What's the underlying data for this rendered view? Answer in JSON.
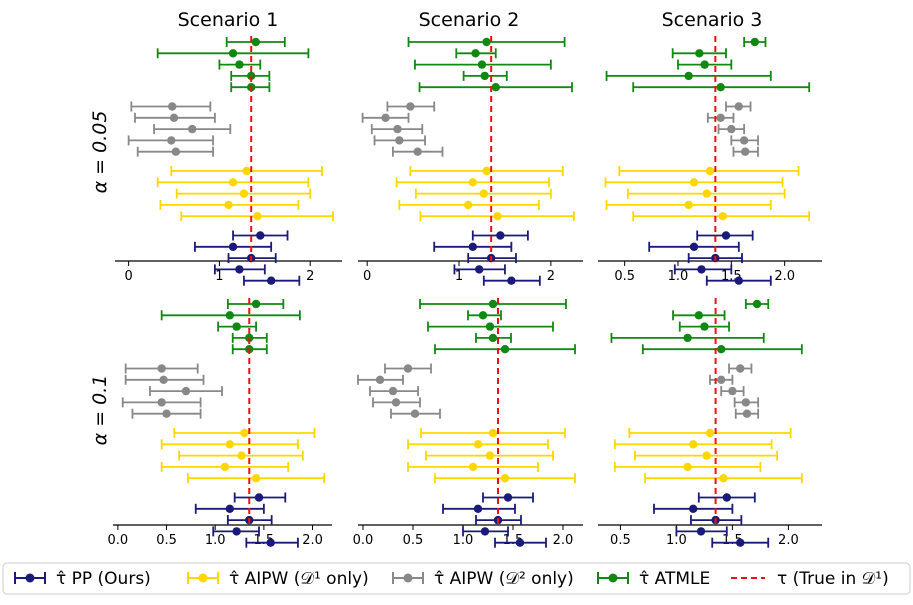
{
  "figure": {
    "column_titles": [
      "Scenario 1",
      "Scenario 2",
      "Scenario 3"
    ],
    "row_labels": [
      "α = 0.05",
      "α = 0.1"
    ],
    "legend": [
      {
        "key": "pp",
        "label": "τ̂ PP (Ours)"
      },
      {
        "key": "aipw1",
        "label": "τ̂ AIPW (𝒟¹ only)"
      },
      {
        "key": "aipw2",
        "label": "τ̂ AIPW (𝒟² only)"
      },
      {
        "key": "atmle",
        "label": "τ̂ ATMLE"
      },
      {
        "key": "truth",
        "label": "τ (True in 𝒟¹)"
      }
    ]
  },
  "colors": {
    "pp": "#1a1a7a",
    "aipw1": "#ffd700",
    "aipw2": "#888888",
    "atmle": "#118811",
    "truth": "#ee1111"
  },
  "chart_data": [
    {
      "type": "scatter",
      "title": "Scenario 1",
      "ylabel": "α = 0.05",
      "xlim": [
        -0.15,
        2.35
      ],
      "xticks": [
        0,
        1,
        2
      ],
      "tick_labels": [
        "0",
        "1",
        "2"
      ],
      "true_tau": 1.35,
      "series": [
        {
          "name": "atmle",
          "points": [
            {
              "est": 1.4,
              "lo": 1.08,
              "hi": 1.72
            },
            {
              "est": 1.15,
              "lo": 0.32,
              "hi": 1.98
            },
            {
              "est": 1.22,
              "lo": 1.0,
              "hi": 1.45
            },
            {
              "est": 1.35,
              "lo": 1.13,
              "hi": 1.55
            },
            {
              "est": 1.35,
              "lo": 1.13,
              "hi": 1.55
            }
          ]
        },
        {
          "name": "aipw2",
          "points": [
            {
              "est": 0.48,
              "lo": 0.03,
              "hi": 0.9
            },
            {
              "est": 0.5,
              "lo": 0.07,
              "hi": 0.95
            },
            {
              "est": 0.7,
              "lo": 0.28,
              "hi": 1.12
            },
            {
              "est": 0.47,
              "lo": 0.0,
              "hi": 0.93
            },
            {
              "est": 0.52,
              "lo": 0.1,
              "hi": 0.93
            }
          ]
        },
        {
          "name": "aipw1",
          "points": [
            {
              "est": 1.3,
              "lo": 0.47,
              "hi": 2.13
            },
            {
              "est": 1.15,
              "lo": 0.32,
              "hi": 1.98
            },
            {
              "est": 1.27,
              "lo": 0.53,
              "hi": 2.0
            },
            {
              "est": 1.1,
              "lo": 0.35,
              "hi": 1.87
            },
            {
              "est": 1.42,
              "lo": 0.58,
              "hi": 2.25
            }
          ]
        },
        {
          "name": "pp",
          "points": [
            {
              "est": 1.45,
              "lo": 1.15,
              "hi": 1.75
            },
            {
              "est": 1.15,
              "lo": 0.73,
              "hi": 1.57
            },
            {
              "est": 1.35,
              "lo": 1.1,
              "hi": 1.62
            },
            {
              "est": 1.22,
              "lo": 0.95,
              "hi": 1.5
            },
            {
              "est": 1.57,
              "lo": 1.27,
              "hi": 1.88
            }
          ]
        }
      ]
    },
    {
      "type": "scatter",
      "title": "Scenario 2",
      "xlim": [
        -0.1,
        2.35
      ],
      "xticks": [
        0,
        1,
        2
      ],
      "tick_labels": [
        "0",
        "1",
        "2"
      ],
      "true_tau": 1.35,
      "series": [
        {
          "name": "atmle",
          "points": [
            {
              "est": 1.3,
              "lo": 0.45,
              "hi": 2.15
            },
            {
              "est": 1.18,
              "lo": 0.97,
              "hi": 1.4
            },
            {
              "est": 1.25,
              "lo": 0.52,
              "hi": 2.0
            },
            {
              "est": 1.28,
              "lo": 1.05,
              "hi": 1.52
            },
            {
              "est": 1.4,
              "lo": 0.57,
              "hi": 2.23
            }
          ]
        },
        {
          "name": "aipw2",
          "points": [
            {
              "est": 0.47,
              "lo": 0.22,
              "hi": 0.73
            },
            {
              "est": 0.2,
              "lo": -0.05,
              "hi": 0.45
            },
            {
              "est": 0.33,
              "lo": 0.05,
              "hi": 0.6
            },
            {
              "est": 0.35,
              "lo": 0.08,
              "hi": 0.63
            },
            {
              "est": 0.55,
              "lo": 0.28,
              "hi": 0.82
            }
          ]
        },
        {
          "name": "aipw1",
          "points": [
            {
              "est": 1.3,
              "lo": 0.47,
              "hi": 2.13
            },
            {
              "est": 1.15,
              "lo": 0.32,
              "hi": 1.98
            },
            {
              "est": 1.27,
              "lo": 0.53,
              "hi": 2.0
            },
            {
              "est": 1.1,
              "lo": 0.35,
              "hi": 1.87
            },
            {
              "est": 1.42,
              "lo": 0.58,
              "hi": 2.25
            }
          ]
        },
        {
          "name": "pp",
          "points": [
            {
              "est": 1.45,
              "lo": 1.15,
              "hi": 1.75
            },
            {
              "est": 1.15,
              "lo": 0.73,
              "hi": 1.57
            },
            {
              "est": 1.35,
              "lo": 1.1,
              "hi": 1.62
            },
            {
              "est": 1.22,
              "lo": 0.95,
              "hi": 1.5
            },
            {
              "est": 1.57,
              "lo": 1.27,
              "hi": 1.88
            }
          ]
        }
      ]
    },
    {
      "type": "scatter",
      "title": "Scenario 3",
      "xlim": [
        0.25,
        2.35
      ],
      "xticks": [
        0.5,
        1.0,
        1.5,
        2.0
      ],
      "tick_labels": [
        "0.5",
        "1.0",
        "1.5",
        "2.0"
      ],
      "true_tau": 1.35,
      "series": [
        {
          "name": "atmle",
          "points": [
            {
              "est": 1.72,
              "lo": 1.62,
              "hi": 1.82
            },
            {
              "est": 1.2,
              "lo": 0.95,
              "hi": 1.45
            },
            {
              "est": 1.25,
              "lo": 1.0,
              "hi": 1.5
            },
            {
              "est": 1.1,
              "lo": 0.33,
              "hi": 1.87
            },
            {
              "est": 1.4,
              "lo": 0.58,
              "hi": 2.23
            }
          ]
        },
        {
          "name": "aipw2",
          "points": [
            {
              "est": 1.57,
              "lo": 1.45,
              "hi": 1.68
            },
            {
              "est": 1.4,
              "lo": 1.28,
              "hi": 1.52
            },
            {
              "est": 1.5,
              "lo": 1.38,
              "hi": 1.62
            },
            {
              "est": 1.62,
              "lo": 1.5,
              "hi": 1.75
            },
            {
              "est": 1.63,
              "lo": 1.52,
              "hi": 1.75
            }
          ]
        },
        {
          "name": "aipw1",
          "points": [
            {
              "est": 1.3,
              "lo": 0.45,
              "hi": 2.13
            },
            {
              "est": 1.15,
              "lo": 0.32,
              "hi": 1.98
            },
            {
              "est": 1.27,
              "lo": 0.53,
              "hi": 2.0
            },
            {
              "est": 1.1,
              "lo": 0.33,
              "hi": 1.87
            },
            {
              "est": 1.42,
              "lo": 0.58,
              "hi": 2.23
            }
          ]
        },
        {
          "name": "pp",
          "points": [
            {
              "est": 1.45,
              "lo": 1.18,
              "hi": 1.7
            },
            {
              "est": 1.15,
              "lo": 0.73,
              "hi": 1.57
            },
            {
              "est": 1.35,
              "lo": 1.1,
              "hi": 1.6
            },
            {
              "est": 1.22,
              "lo": 0.97,
              "hi": 1.5
            },
            {
              "est": 1.57,
              "lo": 1.27,
              "hi": 1.87
            }
          ]
        }
      ]
    },
    {
      "type": "scatter",
      "ylabel": "α = 0.1",
      "xlim": [
        -0.05,
        2.2
      ],
      "xticks": [
        0.0,
        0.5,
        1.0,
        1.5,
        2.0
      ],
      "tick_labels": [
        "0.0",
        "0.5",
        "1.0",
        "1.5",
        "2.0"
      ],
      "true_tau": 1.35,
      "series": [
        {
          "name": "atmle",
          "points": [
            {
              "est": 1.42,
              "lo": 1.13,
              "hi": 1.7
            },
            {
              "est": 1.15,
              "lo": 0.45,
              "hi": 1.87
            },
            {
              "est": 1.22,
              "lo": 1.03,
              "hi": 1.42
            },
            {
              "est": 1.35,
              "lo": 1.18,
              "hi": 1.53
            },
            {
              "est": 1.35,
              "lo": 1.18,
              "hi": 1.53
            }
          ]
        },
        {
          "name": "aipw2",
          "points": [
            {
              "est": 0.45,
              "lo": 0.08,
              "hi": 0.82
            },
            {
              "est": 0.47,
              "lo": 0.08,
              "hi": 0.88
            },
            {
              "est": 0.7,
              "lo": 0.33,
              "hi": 1.07
            },
            {
              "est": 0.45,
              "lo": 0.05,
              "hi": 0.85
            },
            {
              "est": 0.5,
              "lo": 0.15,
              "hi": 0.85
            }
          ]
        },
        {
          "name": "aipw1",
          "points": [
            {
              "est": 1.3,
              "lo": 0.58,
              "hi": 2.02
            },
            {
              "est": 1.15,
              "lo": 0.45,
              "hi": 1.85
            },
            {
              "est": 1.27,
              "lo": 0.63,
              "hi": 1.9
            },
            {
              "est": 1.1,
              "lo": 0.45,
              "hi": 1.75
            },
            {
              "est": 1.42,
              "lo": 0.72,
              "hi": 2.12
            }
          ]
        },
        {
          "name": "pp",
          "points": [
            {
              "est": 1.45,
              "lo": 1.2,
              "hi": 1.72
            },
            {
              "est": 1.15,
              "lo": 0.8,
              "hi": 1.5
            },
            {
              "est": 1.35,
              "lo": 1.13,
              "hi": 1.58
            },
            {
              "est": 1.22,
              "lo": 0.98,
              "hi": 1.45
            },
            {
              "est": 1.57,
              "lo": 1.32,
              "hi": 1.85
            }
          ]
        }
      ]
    },
    {
      "type": "scatter",
      "xlim": [
        -0.05,
        2.2
      ],
      "xticks": [
        0.0,
        0.5,
        1.0,
        1.5,
        2.0
      ],
      "tick_labels": [
        "0.0",
        "0.5",
        "1.0",
        "1.5",
        "2.0"
      ],
      "true_tau": 1.35,
      "series": [
        {
          "name": "atmle",
          "points": [
            {
              "est": 1.3,
              "lo": 0.57,
              "hi": 2.03
            },
            {
              "est": 1.2,
              "lo": 1.05,
              "hi": 1.38
            },
            {
              "est": 1.27,
              "lo": 0.65,
              "hi": 1.9
            },
            {
              "est": 1.3,
              "lo": 1.13,
              "hi": 1.48
            },
            {
              "est": 1.42,
              "lo": 0.72,
              "hi": 2.12
            }
          ]
        },
        {
          "name": "aipw2",
          "points": [
            {
              "est": 0.45,
              "lo": 0.22,
              "hi": 0.68
            },
            {
              "est": 0.17,
              "lo": -0.05,
              "hi": 0.4
            },
            {
              "est": 0.3,
              "lo": 0.07,
              "hi": 0.55
            },
            {
              "est": 0.33,
              "lo": 0.1,
              "hi": 0.57
            },
            {
              "est": 0.52,
              "lo": 0.28,
              "hi": 0.77
            }
          ]
        },
        {
          "name": "aipw1",
          "points": [
            {
              "est": 1.3,
              "lo": 0.58,
              "hi": 2.02
            },
            {
              "est": 1.15,
              "lo": 0.45,
              "hi": 1.85
            },
            {
              "est": 1.27,
              "lo": 0.63,
              "hi": 1.9
            },
            {
              "est": 1.1,
              "lo": 0.45,
              "hi": 1.75
            },
            {
              "est": 1.42,
              "lo": 0.72,
              "hi": 2.12
            }
          ]
        },
        {
          "name": "pp",
          "points": [
            {
              "est": 1.45,
              "lo": 1.2,
              "hi": 1.7
            },
            {
              "est": 1.15,
              "lo": 0.8,
              "hi": 1.52
            },
            {
              "est": 1.35,
              "lo": 1.13,
              "hi": 1.58
            },
            {
              "est": 1.22,
              "lo": 1.0,
              "hi": 1.45
            },
            {
              "est": 1.57,
              "lo": 1.32,
              "hi": 1.83
            }
          ]
        }
      ]
    },
    {
      "type": "scatter",
      "xlim": [
        0.3,
        2.3
      ],
      "xticks": [
        0.5,
        1.0,
        1.5,
        2.0
      ],
      "tick_labels": [
        "0.5",
        "1.0",
        "1.5",
        "2.0"
      ],
      "true_tau": 1.35,
      "series": [
        {
          "name": "atmle",
          "points": [
            {
              "est": 1.72,
              "lo": 1.62,
              "hi": 1.82
            },
            {
              "est": 1.2,
              "lo": 0.97,
              "hi": 1.43
            },
            {
              "est": 1.25,
              "lo": 1.03,
              "hi": 1.47
            },
            {
              "est": 1.1,
              "lo": 0.42,
              "hi": 1.78
            },
            {
              "est": 1.4,
              "lo": 0.7,
              "hi": 2.12
            }
          ]
        },
        {
          "name": "aipw2",
          "points": [
            {
              "est": 1.57,
              "lo": 1.47,
              "hi": 1.67
            },
            {
              "est": 1.4,
              "lo": 1.3,
              "hi": 1.5
            },
            {
              "est": 1.5,
              "lo": 1.4,
              "hi": 1.6
            },
            {
              "est": 1.62,
              "lo": 1.52,
              "hi": 1.73
            },
            {
              "est": 1.63,
              "lo": 1.53,
              "hi": 1.73
            }
          ]
        },
        {
          "name": "aipw1",
          "points": [
            {
              "est": 1.3,
              "lo": 0.58,
              "hi": 2.02
            },
            {
              "est": 1.15,
              "lo": 0.45,
              "hi": 1.85
            },
            {
              "est": 1.27,
              "lo": 0.63,
              "hi": 1.9
            },
            {
              "est": 1.1,
              "lo": 0.45,
              "hi": 1.75
            },
            {
              "est": 1.42,
              "lo": 0.72,
              "hi": 2.12
            }
          ]
        },
        {
          "name": "pp",
          "points": [
            {
              "est": 1.45,
              "lo": 1.2,
              "hi": 1.7
            },
            {
              "est": 1.15,
              "lo": 0.8,
              "hi": 1.5
            },
            {
              "est": 1.35,
              "lo": 1.13,
              "hi": 1.58
            },
            {
              "est": 1.22,
              "lo": 1.0,
              "hi": 1.45
            },
            {
              "est": 1.57,
              "lo": 1.32,
              "hi": 1.82
            }
          ]
        }
      ]
    }
  ]
}
